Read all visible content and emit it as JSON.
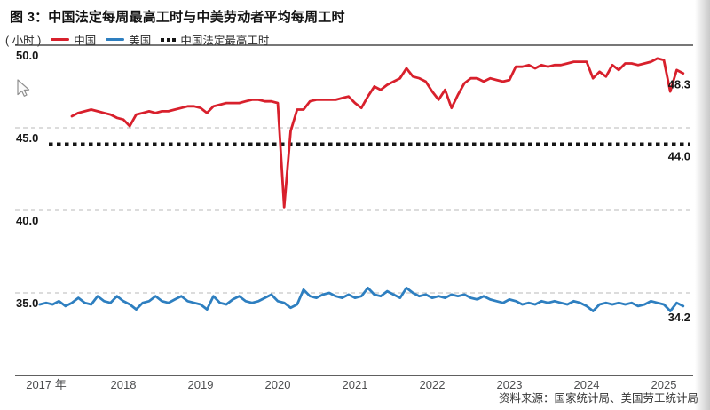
{
  "header": {
    "title": "图 3：中国法定每周最高工时与中美劳动者平均每周工时"
  },
  "legend": {
    "unit": "( 小时 )",
    "items": [
      {
        "label": "中国",
        "color": "#d8202c",
        "style": "solid"
      },
      {
        "label": "美国",
        "color": "#2e7fc0",
        "style": "solid"
      },
      {
        "label": "中国法定最高工时",
        "color": "#151515",
        "style": "dotted"
      }
    ]
  },
  "source": {
    "text": "资料来源：国家统计局、美国劳工统计局"
  },
  "chart_data": {
    "type": "line",
    "title": "中国法定每周最高工时与中美劳动者平均每周工时",
    "ylabel": "小时",
    "xlabel": "",
    "ylim": [
      30,
      50
    ],
    "grid": "horizontal-dashed",
    "legend_position": "top-left",
    "yticks": [
      {
        "label": "50.0",
        "value": 50,
        "style": "solid"
      },
      {
        "label": "45.0",
        "value": 45,
        "style": "dashed"
      },
      {
        "label": "40.0",
        "value": 40,
        "style": "dashed"
      },
      {
        "label": "35.0",
        "value": 35,
        "style": "dashed"
      }
    ],
    "baseline_value": 30,
    "xticks": [
      {
        "label": "2017 年",
        "year": 2017
      },
      {
        "label": "2018",
        "year": 2018
      },
      {
        "label": "2019",
        "year": 2019
      },
      {
        "label": "2020",
        "year": 2020
      },
      {
        "label": "2021",
        "year": 2021
      },
      {
        "label": "2022",
        "year": 2022
      },
      {
        "label": "2023",
        "year": 2023
      },
      {
        "label": "2024",
        "year": 2024
      },
      {
        "label": "2025",
        "year": 2025
      }
    ],
    "reference_line": {
      "name": "中国法定最高工时",
      "value": 44.0,
      "label": "44.0"
    },
    "series": [
      {
        "name": "中国",
        "color": "#d8202c",
        "interval": "monthly",
        "start": "2017-05",
        "end_label": "48.3",
        "values": [
          45.7,
          45.9,
          46.0,
          46.1,
          46.0,
          45.9,
          45.8,
          45.6,
          45.5,
          45.1,
          45.8,
          45.9,
          46.0,
          45.9,
          46.0,
          46.0,
          46.1,
          46.2,
          46.3,
          46.3,
          46.2,
          45.9,
          46.3,
          46.4,
          46.5,
          46.5,
          46.5,
          46.6,
          46.7,
          46.7,
          46.6,
          46.6,
          46.5,
          40.2,
          44.8,
          46.1,
          46.1,
          46.6,
          46.7,
          46.7,
          46.7,
          46.7,
          46.8,
          46.9,
          46.5,
          46.2,
          46.9,
          47.5,
          47.3,
          47.6,
          47.8,
          48.0,
          48.6,
          48.1,
          48.0,
          47.8,
          47.2,
          46.7,
          47.3,
          46.2,
          47.0,
          47.7,
          48.0,
          48.0,
          47.8,
          48.0,
          47.9,
          47.8,
          47.9,
          48.7,
          48.7,
          48.8,
          48.6,
          48.8,
          48.7,
          48.8,
          48.8,
          48.9,
          49.0,
          49.0,
          49.0,
          48.0,
          48.4,
          48.1,
          48.8,
          48.5,
          48.9,
          48.9,
          48.8,
          48.9,
          49.0,
          49.2,
          49.1,
          47.2,
          48.5,
          48.3
        ]
      },
      {
        "name": "美国",
        "color": "#2e7fc0",
        "interval": "monthly",
        "start": "2016-12",
        "end_label": "34.2",
        "values": [
          34.3,
          34.4,
          34.3,
          34.5,
          34.2,
          34.4,
          34.7,
          34.4,
          34.3,
          34.8,
          34.5,
          34.4,
          34.8,
          34.5,
          34.3,
          34.0,
          34.4,
          34.5,
          34.8,
          34.5,
          34.4,
          34.6,
          34.8,
          34.5,
          34.4,
          34.3,
          34.0,
          34.8,
          34.4,
          34.3,
          34.6,
          34.8,
          34.5,
          34.4,
          34.5,
          34.7,
          34.9,
          34.5,
          34.4,
          34.1,
          34.3,
          35.2,
          34.8,
          34.7,
          34.9,
          35.0,
          34.8,
          34.7,
          34.9,
          34.7,
          34.8,
          35.3,
          34.9,
          34.8,
          35.1,
          34.9,
          34.7,
          35.3,
          35.0,
          34.8,
          34.9,
          34.7,
          34.8,
          34.7,
          34.9,
          34.8,
          34.9,
          34.7,
          34.6,
          34.8,
          34.6,
          34.5,
          34.4,
          34.6,
          34.5,
          34.3,
          34.4,
          34.3,
          34.5,
          34.4,
          34.5,
          34.4,
          34.3,
          34.5,
          34.4,
          34.2,
          33.9,
          34.3,
          34.4,
          34.3,
          34.4,
          34.3,
          34.4,
          34.2,
          34.3,
          34.5,
          34.4,
          34.3,
          33.9,
          34.4,
          34.2
        ]
      }
    ]
  }
}
